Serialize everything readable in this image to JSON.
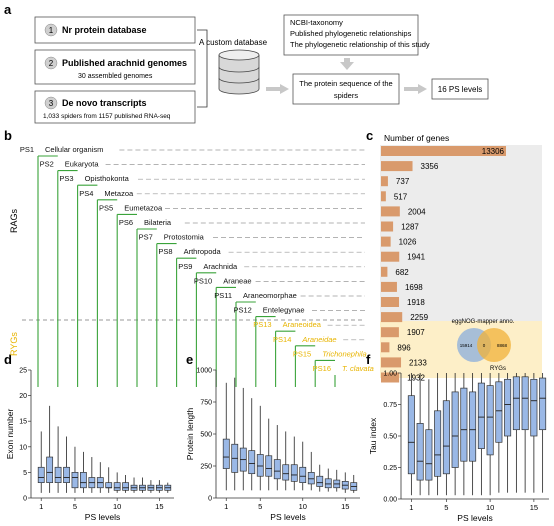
{
  "panel_labels": {
    "a": "a",
    "b": "b",
    "c": "c",
    "d": "d",
    "e": "e",
    "f": "f"
  },
  "panel_a": {
    "sources": [
      {
        "num": "1",
        "title": "Nr protein database",
        "subtitle": ""
      },
      {
        "num": "2",
        "title": "Published arachnid genomes",
        "subtitle": "30 assembled genomes"
      },
      {
        "num": "3",
        "title": "De novo transcripts",
        "subtitle": "1,033 spiders from 1157 published RNA-seq"
      }
    ],
    "custom_db_label": "A custom database",
    "info_lines": [
      "NCBI-taxonomy",
      "Published phylogenetic relationships",
      "The phylogenetic relationship of this study"
    ],
    "protein_box": [
      "The protein sequence of the",
      "spiders"
    ],
    "result": "16 PS levels"
  },
  "panel_b": {
    "group_rags": "RAGs",
    "group_rygs": "RYGs",
    "levels": [
      {
        "ps": "PS1",
        "name": "Cellular organism",
        "italic": false
      },
      {
        "ps": "PS2",
        "name": "Eukaryota",
        "italic": false
      },
      {
        "ps": "PS3",
        "name": "Opisthokonta",
        "italic": false
      },
      {
        "ps": "PS4",
        "name": "Metazoa",
        "italic": false
      },
      {
        "ps": "PS5",
        "name": "Eumetazoa",
        "italic": false
      },
      {
        "ps": "PS6",
        "name": "Bilateria",
        "italic": false
      },
      {
        "ps": "PS7",
        "name": "Protostomia",
        "italic": false
      },
      {
        "ps": "PS8",
        "name": "Arthropoda",
        "italic": false
      },
      {
        "ps": "PS9",
        "name": "Arachnida",
        "italic": false
      },
      {
        "ps": "PS10",
        "name": "Araneae",
        "italic": false
      },
      {
        "ps": "PS11",
        "name": "Araneomorphae",
        "italic": false
      },
      {
        "ps": "PS12",
        "name": "Entelegynae",
        "italic": false
      },
      {
        "ps": "PS13",
        "name": "Araneoidea",
        "italic": false
      },
      {
        "ps": "PS14",
        "name": "Araneidae",
        "italic": true
      },
      {
        "ps": "PS15",
        "name": "Trichonephila",
        "italic": true
      },
      {
        "ps": "PS16",
        "name": "T. clavata",
        "italic": true
      }
    ],
    "colors": {
      "tree": "#3aa33a",
      "ryg": "#e8b400"
    }
  },
  "panel_c": {
    "title": "Number of genes",
    "venn_title": "eggNOG-mapper anno.",
    "venn_left": "15914",
    "venn_mid": "0",
    "venn_right": "8868",
    "venn_label": "RYGs"
  },
  "chart_data": [
    {
      "type": "bar",
      "title": "Number of genes",
      "orientation": "horizontal",
      "categories": [
        "PS1",
        "PS2",
        "PS3",
        "PS4",
        "PS5",
        "PS6",
        "PS7",
        "PS8",
        "PS9",
        "PS10",
        "PS11",
        "PS12",
        "PS13",
        "PS14",
        "PS15",
        "PS16"
      ],
      "values": [
        13306,
        3356,
        737,
        517,
        2004,
        1287,
        1026,
        1941,
        682,
        1698,
        1918,
        2259,
        1907,
        896,
        2133,
        1932
      ],
      "colors": {
        "bar": "#d99a6c",
        "rags_bg": "#ececec",
        "rygs_bg": "#fdefc8"
      }
    },
    {
      "type": "box",
      "xlabel": "PS levels",
      "ylabel": "Exon number",
      "ylim": [
        0,
        25
      ],
      "yticks": [
        "0",
        "5",
        "10",
        "15",
        "20",
        "25"
      ],
      "xticks": [
        "1",
        "5",
        "10",
        "15"
      ],
      "boxes": [
        {
          "q1": 3,
          "med": 4,
          "q3": 6,
          "wl": 1,
          "wh": 13
        },
        {
          "q1": 3,
          "med": 5,
          "q3": 8,
          "wl": 1,
          "wh": 18
        },
        {
          "q1": 3,
          "med": 4,
          "q3": 6,
          "wl": 1,
          "wh": 14
        },
        {
          "q1": 3,
          "med": 4,
          "q3": 6,
          "wl": 1,
          "wh": 12
        },
        {
          "q1": 2,
          "med": 4,
          "q3": 5,
          "wl": 1,
          "wh": 10
        },
        {
          "q1": 2,
          "med": 3,
          "q3": 5,
          "wl": 1,
          "wh": 9
        },
        {
          "q1": 2,
          "med": 3,
          "q3": 4,
          "wl": 1,
          "wh": 8
        },
        {
          "q1": 2,
          "med": 3,
          "q3": 4,
          "wl": 1,
          "wh": 7
        },
        {
          "q1": 2,
          "med": 2,
          "q3": 3,
          "wl": 1,
          "wh": 6
        },
        {
          "q1": 1.5,
          "med": 2,
          "q3": 3,
          "wl": 1,
          "wh": 5
        },
        {
          "q1": 1.5,
          "med": 2,
          "q3": 3,
          "wl": 1,
          "wh": 4.5
        },
        {
          "q1": 1.5,
          "med": 2,
          "q3": 2.5,
          "wl": 1,
          "wh": 4
        },
        {
          "q1": 1.5,
          "med": 2,
          "q3": 2.5,
          "wl": 1,
          "wh": 4
        },
        {
          "q1": 1.5,
          "med": 2,
          "q3": 2.5,
          "wl": 1,
          "wh": 3.5
        },
        {
          "q1": 1.5,
          "med": 2,
          "q3": 2.5,
          "wl": 1,
          "wh": 3.5
        },
        {
          "q1": 1.5,
          "med": 2,
          "q3": 2.5,
          "wl": 1,
          "wh": 3
        }
      ]
    },
    {
      "type": "box",
      "xlabel": "PS levels",
      "ylabel": "Protein length",
      "ylim": [
        0,
        1000
      ],
      "yticks": [
        "0",
        "250",
        "500",
        "750",
        "1000"
      ],
      "xticks": [
        "1",
        "5",
        "10",
        "15"
      ],
      "boxes": [
        {
          "q1": 230,
          "med": 320,
          "q3": 460,
          "wl": 60,
          "wh": 900
        },
        {
          "q1": 200,
          "med": 310,
          "q3": 420,
          "wl": 60,
          "wh": 940
        },
        {
          "q1": 210,
          "med": 300,
          "q3": 390,
          "wl": 60,
          "wh": 860
        },
        {
          "q1": 190,
          "med": 270,
          "q3": 370,
          "wl": 60,
          "wh": 780
        },
        {
          "q1": 170,
          "med": 250,
          "q3": 340,
          "wl": 60,
          "wh": 720
        },
        {
          "q1": 170,
          "med": 230,
          "q3": 330,
          "wl": 60,
          "wh": 620
        },
        {
          "q1": 150,
          "med": 210,
          "q3": 300,
          "wl": 60,
          "wh": 570
        },
        {
          "q1": 140,
          "med": 190,
          "q3": 260,
          "wl": 60,
          "wh": 520
        },
        {
          "q1": 130,
          "med": 180,
          "q3": 260,
          "wl": 60,
          "wh": 480
        },
        {
          "q1": 120,
          "med": 170,
          "q3": 240,
          "wl": 60,
          "wh": 440
        },
        {
          "q1": 110,
          "med": 150,
          "q3": 200,
          "wl": 60,
          "wh": 360
        },
        {
          "q1": 90,
          "med": 120,
          "q3": 170,
          "wl": 50,
          "wh": 260
        },
        {
          "q1": 80,
          "med": 110,
          "q3": 150,
          "wl": 50,
          "wh": 230
        },
        {
          "q1": 80,
          "med": 110,
          "q3": 140,
          "wl": 50,
          "wh": 220
        },
        {
          "q1": 70,
          "med": 100,
          "q3": 130,
          "wl": 40,
          "wh": 200
        },
        {
          "q1": 60,
          "med": 90,
          "q3": 120,
          "wl": 40,
          "wh": 180
        }
      ]
    },
    {
      "type": "box",
      "xlabel": "PS levels",
      "ylabel": "Tau index",
      "ylim": [
        0,
        1.0
      ],
      "yticks": [
        "0.00",
        "0.25",
        "0.50",
        "0.75",
        "1.00"
      ],
      "xticks": [
        "1",
        "5",
        "10",
        "15"
      ],
      "boxes": [
        {
          "q1": 0.2,
          "med": 0.45,
          "q3": 0.82,
          "wl": 0.03,
          "wh": 1.0
        },
        {
          "q1": 0.15,
          "med": 0.3,
          "q3": 0.6,
          "wl": 0.03,
          "wh": 1.0
        },
        {
          "q1": 0.15,
          "med": 0.28,
          "q3": 0.55,
          "wl": 0.03,
          "wh": 0.95
        },
        {
          "q1": 0.18,
          "med": 0.35,
          "q3": 0.7,
          "wl": 0.03,
          "wh": 1.0
        },
        {
          "q1": 0.2,
          "med": 0.42,
          "q3": 0.78,
          "wl": 0.03,
          "wh": 1.0
        },
        {
          "q1": 0.25,
          "med": 0.5,
          "q3": 0.85,
          "wl": 0.03,
          "wh": 1.0
        },
        {
          "q1": 0.3,
          "med": 0.55,
          "q3": 0.88,
          "wl": 0.03,
          "wh": 1.0
        },
        {
          "q1": 0.3,
          "med": 0.55,
          "q3": 0.85,
          "wl": 0.03,
          "wh": 1.0
        },
        {
          "q1": 0.4,
          "med": 0.65,
          "q3": 0.92,
          "wl": 0.03,
          "wh": 1.0
        },
        {
          "q1": 0.35,
          "med": 0.65,
          "q3": 0.9,
          "wl": 0.03,
          "wh": 1.0
        },
        {
          "q1": 0.45,
          "med": 0.7,
          "q3": 0.93,
          "wl": 0.05,
          "wh": 1.0
        },
        {
          "q1": 0.5,
          "med": 0.75,
          "q3": 0.95,
          "wl": 0.05,
          "wh": 1.0
        },
        {
          "q1": 0.55,
          "med": 0.8,
          "q3": 0.97,
          "wl": 0.05,
          "wh": 1.0
        },
        {
          "q1": 0.55,
          "med": 0.8,
          "q3": 0.97,
          "wl": 0.05,
          "wh": 1.0
        },
        {
          "q1": 0.5,
          "med": 0.78,
          "q3": 0.95,
          "wl": 0.05,
          "wh": 1.0
        },
        {
          "q1": 0.55,
          "med": 0.8,
          "q3": 0.96,
          "wl": 0.05,
          "wh": 1.0
        }
      ]
    }
  ]
}
